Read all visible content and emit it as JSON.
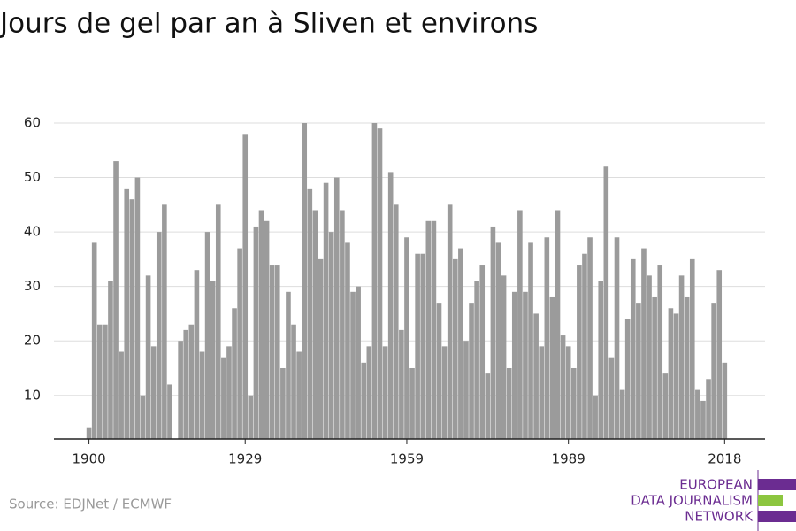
{
  "chart_data": {
    "type": "bar",
    "title": "Jours de gel par an à Sliven et environs",
    "x": [
      1900,
      1901,
      1902,
      1903,
      1904,
      1905,
      1906,
      1907,
      1908,
      1909,
      1910,
      1911,
      1912,
      1913,
      1914,
      1915,
      1916,
      1917,
      1918,
      1919,
      1920,
      1921,
      1922,
      1923,
      1924,
      1925,
      1926,
      1927,
      1928,
      1929,
      1930,
      1931,
      1932,
      1933,
      1934,
      1935,
      1936,
      1937,
      1938,
      1939,
      1940,
      1941,
      1942,
      1943,
      1944,
      1945,
      1946,
      1947,
      1948,
      1949,
      1950,
      1951,
      1952,
      1953,
      1954,
      1955,
      1956,
      1957,
      1958,
      1959,
      1960,
      1961,
      1962,
      1963,
      1964,
      1965,
      1966,
      1967,
      1968,
      1969,
      1970,
      1971,
      1972,
      1973,
      1974,
      1975,
      1976,
      1977,
      1978,
      1979,
      1980,
      1981,
      1982,
      1983,
      1984,
      1985,
      1986,
      1987,
      1988,
      1989,
      1990,
      1991,
      1992,
      1993,
      1994,
      1995,
      1996,
      1997,
      1998,
      1999,
      2000,
      2001,
      2002,
      2003,
      2004,
      2005,
      2006,
      2007,
      2008,
      2009,
      2010,
      2011,
      2012,
      2013,
      2014,
      2015,
      2016,
      2017,
      2018
    ],
    "values": [
      4,
      38,
      23,
      23,
      31,
      53,
      18,
      48,
      46,
      50,
      10,
      32,
      19,
      40,
      45,
      12,
      null,
      20,
      22,
      23,
      33,
      18,
      40,
      31,
      45,
      17,
      19,
      26,
      37,
      58,
      10,
      41,
      44,
      42,
      34,
      34,
      15,
      29,
      23,
      18,
      60,
      48,
      44,
      35,
      49,
      40,
      50,
      44,
      38,
      29,
      30,
      16,
      19,
      60,
      59,
      19,
      51,
      45,
      22,
      39,
      15,
      36,
      36,
      42,
      42,
      27,
      19,
      45,
      35,
      37,
      20,
      27,
      31,
      34,
      14,
      41,
      38,
      32,
      15,
      29,
      44,
      29,
      38,
      25,
      19,
      39,
      28,
      44,
      21,
      19,
      15,
      34,
      36,
      39,
      10,
      31,
      52,
      17,
      39,
      11,
      24,
      35,
      27,
      37,
      32,
      28,
      34,
      14,
      26,
      25,
      32,
      28,
      35,
      11,
      9,
      13,
      27,
      33,
      16
    ],
    "color": "#9b9b9b",
    "xlim": [
      1893.5,
      2025.5
    ],
    "xticks": [
      1900,
      1929,
      1959,
      1989,
      2018
    ],
    "ylim": [
      2,
      60
    ],
    "yticks": [
      10,
      20,
      30,
      40,
      50,
      60
    ],
    "grid": true,
    "source": "Source: EDJNet / ECMWF",
    "logo": [
      "EUROPEAN",
      "DATA JOURNALISM",
      "NETWORK"
    ]
  }
}
